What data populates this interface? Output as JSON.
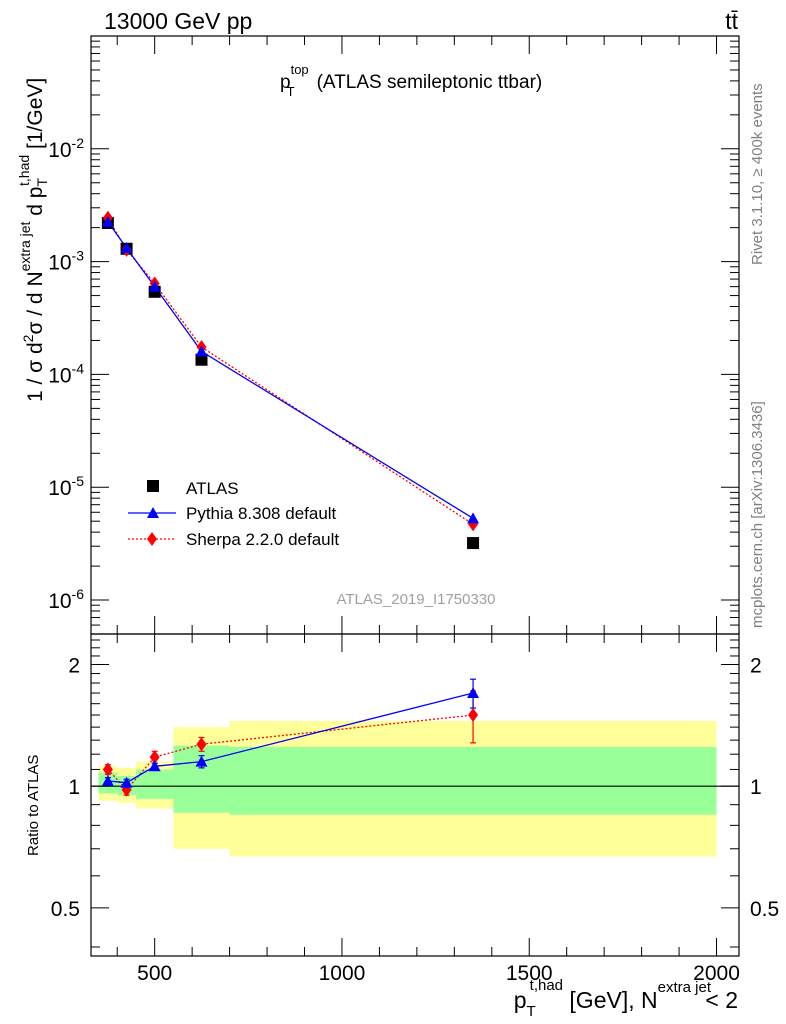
{
  "header": {
    "left": "13000 GeV pp",
    "right": "tt̄"
  },
  "side_labels": {
    "rivet": "Rivet 3.1.10, ≥ 400k events",
    "mcplots": "mcplots.cern.ch [arXiv:1306.3436]"
  },
  "plot_title": {
    "main": "p",
    "sup": "top",
    "sub": "T",
    "rest": "(ATLAS semileptonic ttbar)"
  },
  "analysis_id": "ATLAS_2019_I1750330",
  "axes": {
    "ylabel_main": {
      "prefix": "1 / σ d",
      "s2": "2",
      "mid": "σ /  d N",
      "sup1": "extra jet",
      "d": " d p",
      "sub2": "T",
      "sup2": "t,had",
      "unit": " [1/GeV]"
    },
    "ylabel_ratio": "Ratio to ATLAS",
    "xlabel": {
      "p": "p",
      "sub": "T",
      "sup": "t,had",
      "mid": " [GeV], N",
      "sup2": "extra jet",
      "end": " < 2"
    }
  },
  "legend": [
    {
      "label": "ATLAS",
      "color": "#000000",
      "marker": "square"
    },
    {
      "label": "Pythia 8.308 default",
      "color": "#0000ff",
      "marker": "triangle"
    },
    {
      "label": "Sherpa 2.2.0 default",
      "color": "#ff0000",
      "marker": "diamond"
    }
  ],
  "chart_data": {
    "type": "scatter",
    "x_range": [
      330,
      2060
    ],
    "y_range_main": [
      5e-07,
      0.1
    ],
    "y_scale_main": "log",
    "y_range_ratio": [
      0.38,
      2.38
    ],
    "y_scale_ratio": "log",
    "x_ticks": [
      500,
      1000,
      1500,
      2000
    ],
    "y_ticks_main": [
      {
        "v": 0.01,
        "base": "10",
        "exp": "-2"
      },
      {
        "v": 0.001,
        "base": "10",
        "exp": "-3"
      },
      {
        "v": 0.0001,
        "base": "10",
        "exp": "-4"
      },
      {
        "v": 1e-05,
        "base": "10",
        "exp": "-5"
      },
      {
        "v": 1e-06,
        "base": "10",
        "exp": "-6"
      }
    ],
    "y_ticks_ratio": [
      {
        "v": 2,
        "label": "2"
      },
      {
        "v": 1,
        "label": "1"
      },
      {
        "v": 0.5,
        "label": "0.5"
      }
    ],
    "bins": [
      {
        "lo": 350,
        "hi": 400,
        "x": 375,
        "atlas": 0.0022,
        "pythia": 0.00225,
        "sherpa": 0.00245,
        "r_pythia": 1.03,
        "r_pythia_err": 0.02,
        "r_sherpa": 1.1,
        "r_sherpa_err": 0.03,
        "band_green": [
          0.96,
          1.08
        ],
        "band_yellow": [
          0.92,
          1.12
        ]
      },
      {
        "lo": 400,
        "hi": 450,
        "x": 425,
        "atlas": 0.0013,
        "pythia": 0.00132,
        "sherpa": 0.00127,
        "r_pythia": 1.02,
        "r_pythia_err": 0.02,
        "r_sherpa": 0.98,
        "r_sherpa_err": 0.03,
        "band_green": [
          0.95,
          1.06
        ],
        "band_yellow": [
          0.91,
          1.11
        ]
      },
      {
        "lo": 450,
        "hi": 550,
        "x": 500,
        "atlas": 0.00054,
        "pythia": 0.0006,
        "sherpa": 0.00064,
        "r_pythia": 1.12,
        "r_pythia_err": 0.02,
        "r_sherpa": 1.18,
        "r_sherpa_err": 0.04,
        "band_green": [
          0.93,
          1.1
        ],
        "band_yellow": [
          0.88,
          1.15
        ]
      },
      {
        "lo": 550,
        "hi": 700,
        "x": 625,
        "atlas": 0.000135,
        "pythia": 0.00016,
        "sherpa": 0.000175,
        "r_pythia": 1.15,
        "r_pythia_err": 0.04,
        "r_sherpa": 1.27,
        "r_sherpa_err": 0.05,
        "band_green": [
          0.86,
          1.26
        ],
        "band_yellow": [
          0.7,
          1.4
        ]
      },
      {
        "lo": 700,
        "hi": 2000,
        "x": 1350,
        "atlas": 3.2e-06,
        "pythia": 5.3e-06,
        "sherpa": 4.7e-06,
        "r_pythia": 1.7,
        "r_pythia_err": 0.14,
        "r_sherpa": 1.5,
        "r_sherpa_err": 0.22,
        "band_green": [
          0.85,
          1.25
        ],
        "band_yellow": [
          0.67,
          1.45
        ]
      }
    ]
  }
}
